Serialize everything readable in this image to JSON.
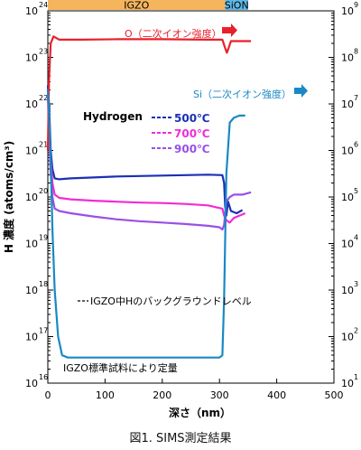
{
  "chart_data": {
    "type": "line",
    "xlabel": "深さ（nm）",
    "ylabel": "H 濃度 (atoms/cm³)",
    "xlim": [
      0,
      500
    ],
    "x_ticks": [
      "0",
      "100",
      "200",
      "300",
      "400",
      "500"
    ],
    "ylim_left_log10": [
      16,
      24
    ],
    "ylim_right_log10": [
      1,
      9
    ],
    "left_axis_exponents": [
      "24",
      "23",
      "22",
      "21",
      "20",
      "19",
      "18",
      "17",
      "16"
    ],
    "right_axis_exponents": [
      "9",
      "8",
      "7",
      "6",
      "5",
      "4",
      "3",
      "2",
      "1"
    ],
    "layer_bands": [
      {
        "name": "IGZO",
        "x_range": [
          0,
          310
        ],
        "color": "#f5b55d"
      },
      {
        "name": "SiON",
        "x_range": [
          310,
          350
        ],
        "color": "#5fb8e6"
      }
    ],
    "legend_title": "Hydrogen",
    "series": [
      {
        "name": "500℃",
        "color": "#1b2fb5",
        "axis": "left",
        "x": [
          0,
          2,
          5,
          8,
          12,
          20,
          40,
          80,
          120,
          160,
          200,
          240,
          280,
          305,
          308,
          310,
          312,
          315,
          320,
          330,
          340
        ],
        "log10": [
          22.4,
          22.0,
          21.0,
          20.6,
          20.4,
          20.38,
          20.4,
          20.42,
          20.44,
          20.45,
          20.46,
          20.47,
          20.48,
          20.47,
          20.3,
          19.8,
          19.6,
          19.9,
          19.7,
          19.65,
          19.72
        ]
      },
      {
        "name": "700℃",
        "color": "#f02cd6",
        "axis": "left",
        "x": [
          0,
          2,
          5,
          8,
          12,
          20,
          40,
          80,
          120,
          160,
          200,
          240,
          280,
          305,
          308,
          312,
          318,
          325,
          335,
          345
        ],
        "log10": [
          22.3,
          21.6,
          20.8,
          20.3,
          20.05,
          19.98,
          19.95,
          19.92,
          19.9,
          19.88,
          19.87,
          19.85,
          19.82,
          19.75,
          19.6,
          19.5,
          19.45,
          19.55,
          19.6,
          19.65
        ]
      },
      {
        "name": "900℃",
        "color": "#9a4fe6",
        "axis": "left",
        "x": [
          0,
          2,
          5,
          8,
          12,
          20,
          40,
          80,
          120,
          160,
          200,
          240,
          280,
          300,
          305,
          308,
          312,
          318,
          325,
          340,
          355
        ],
        "log10": [
          22.2,
          21.4,
          20.5,
          20.0,
          19.75,
          19.7,
          19.65,
          19.58,
          19.52,
          19.48,
          19.45,
          19.42,
          19.38,
          19.35,
          19.3,
          19.4,
          19.9,
          20.0,
          20.05,
          20.05,
          20.1
        ]
      },
      {
        "name": "O（二次イオン強度）",
        "color": "#e8202b",
        "axis": "right",
        "x": [
          0,
          2,
          5,
          10,
          20,
          60,
          120,
          200,
          280,
          305,
          310,
          313,
          316,
          320,
          330,
          345,
          355
        ],
        "log10": [
          6.0,
          7.5,
          8.3,
          8.45,
          8.38,
          8.38,
          8.39,
          8.39,
          8.38,
          8.38,
          8.2,
          8.1,
          8.2,
          8.35,
          8.35,
          8.35,
          8.35
        ]
      },
      {
        "name": "Si（二次イオン強度）",
        "color": "#1a88c4",
        "axis": "right",
        "x": [
          0,
          2,
          5,
          8,
          12,
          18,
          25,
          35,
          60,
          100,
          150,
          200,
          250,
          300,
          305,
          308,
          312,
          318,
          325,
          335,
          345
        ],
        "log10": [
          7.3,
          6.8,
          5.8,
          4.3,
          3.0,
          2.0,
          1.6,
          1.55,
          1.55,
          1.55,
          1.55,
          1.55,
          1.55,
          1.55,
          1.6,
          2.8,
          5.5,
          6.6,
          6.7,
          6.75,
          6.75
        ]
      }
    ],
    "annotations": {
      "o_label": "O（二次イオン強度）",
      "si_label": "Si（二次イオン強度）",
      "background_note": "IGZO中Hのバックグラウンドレベル",
      "calibration_note": "IGZO標準試料により定量"
    }
  },
  "caption": "図1. SIMS測定結果"
}
